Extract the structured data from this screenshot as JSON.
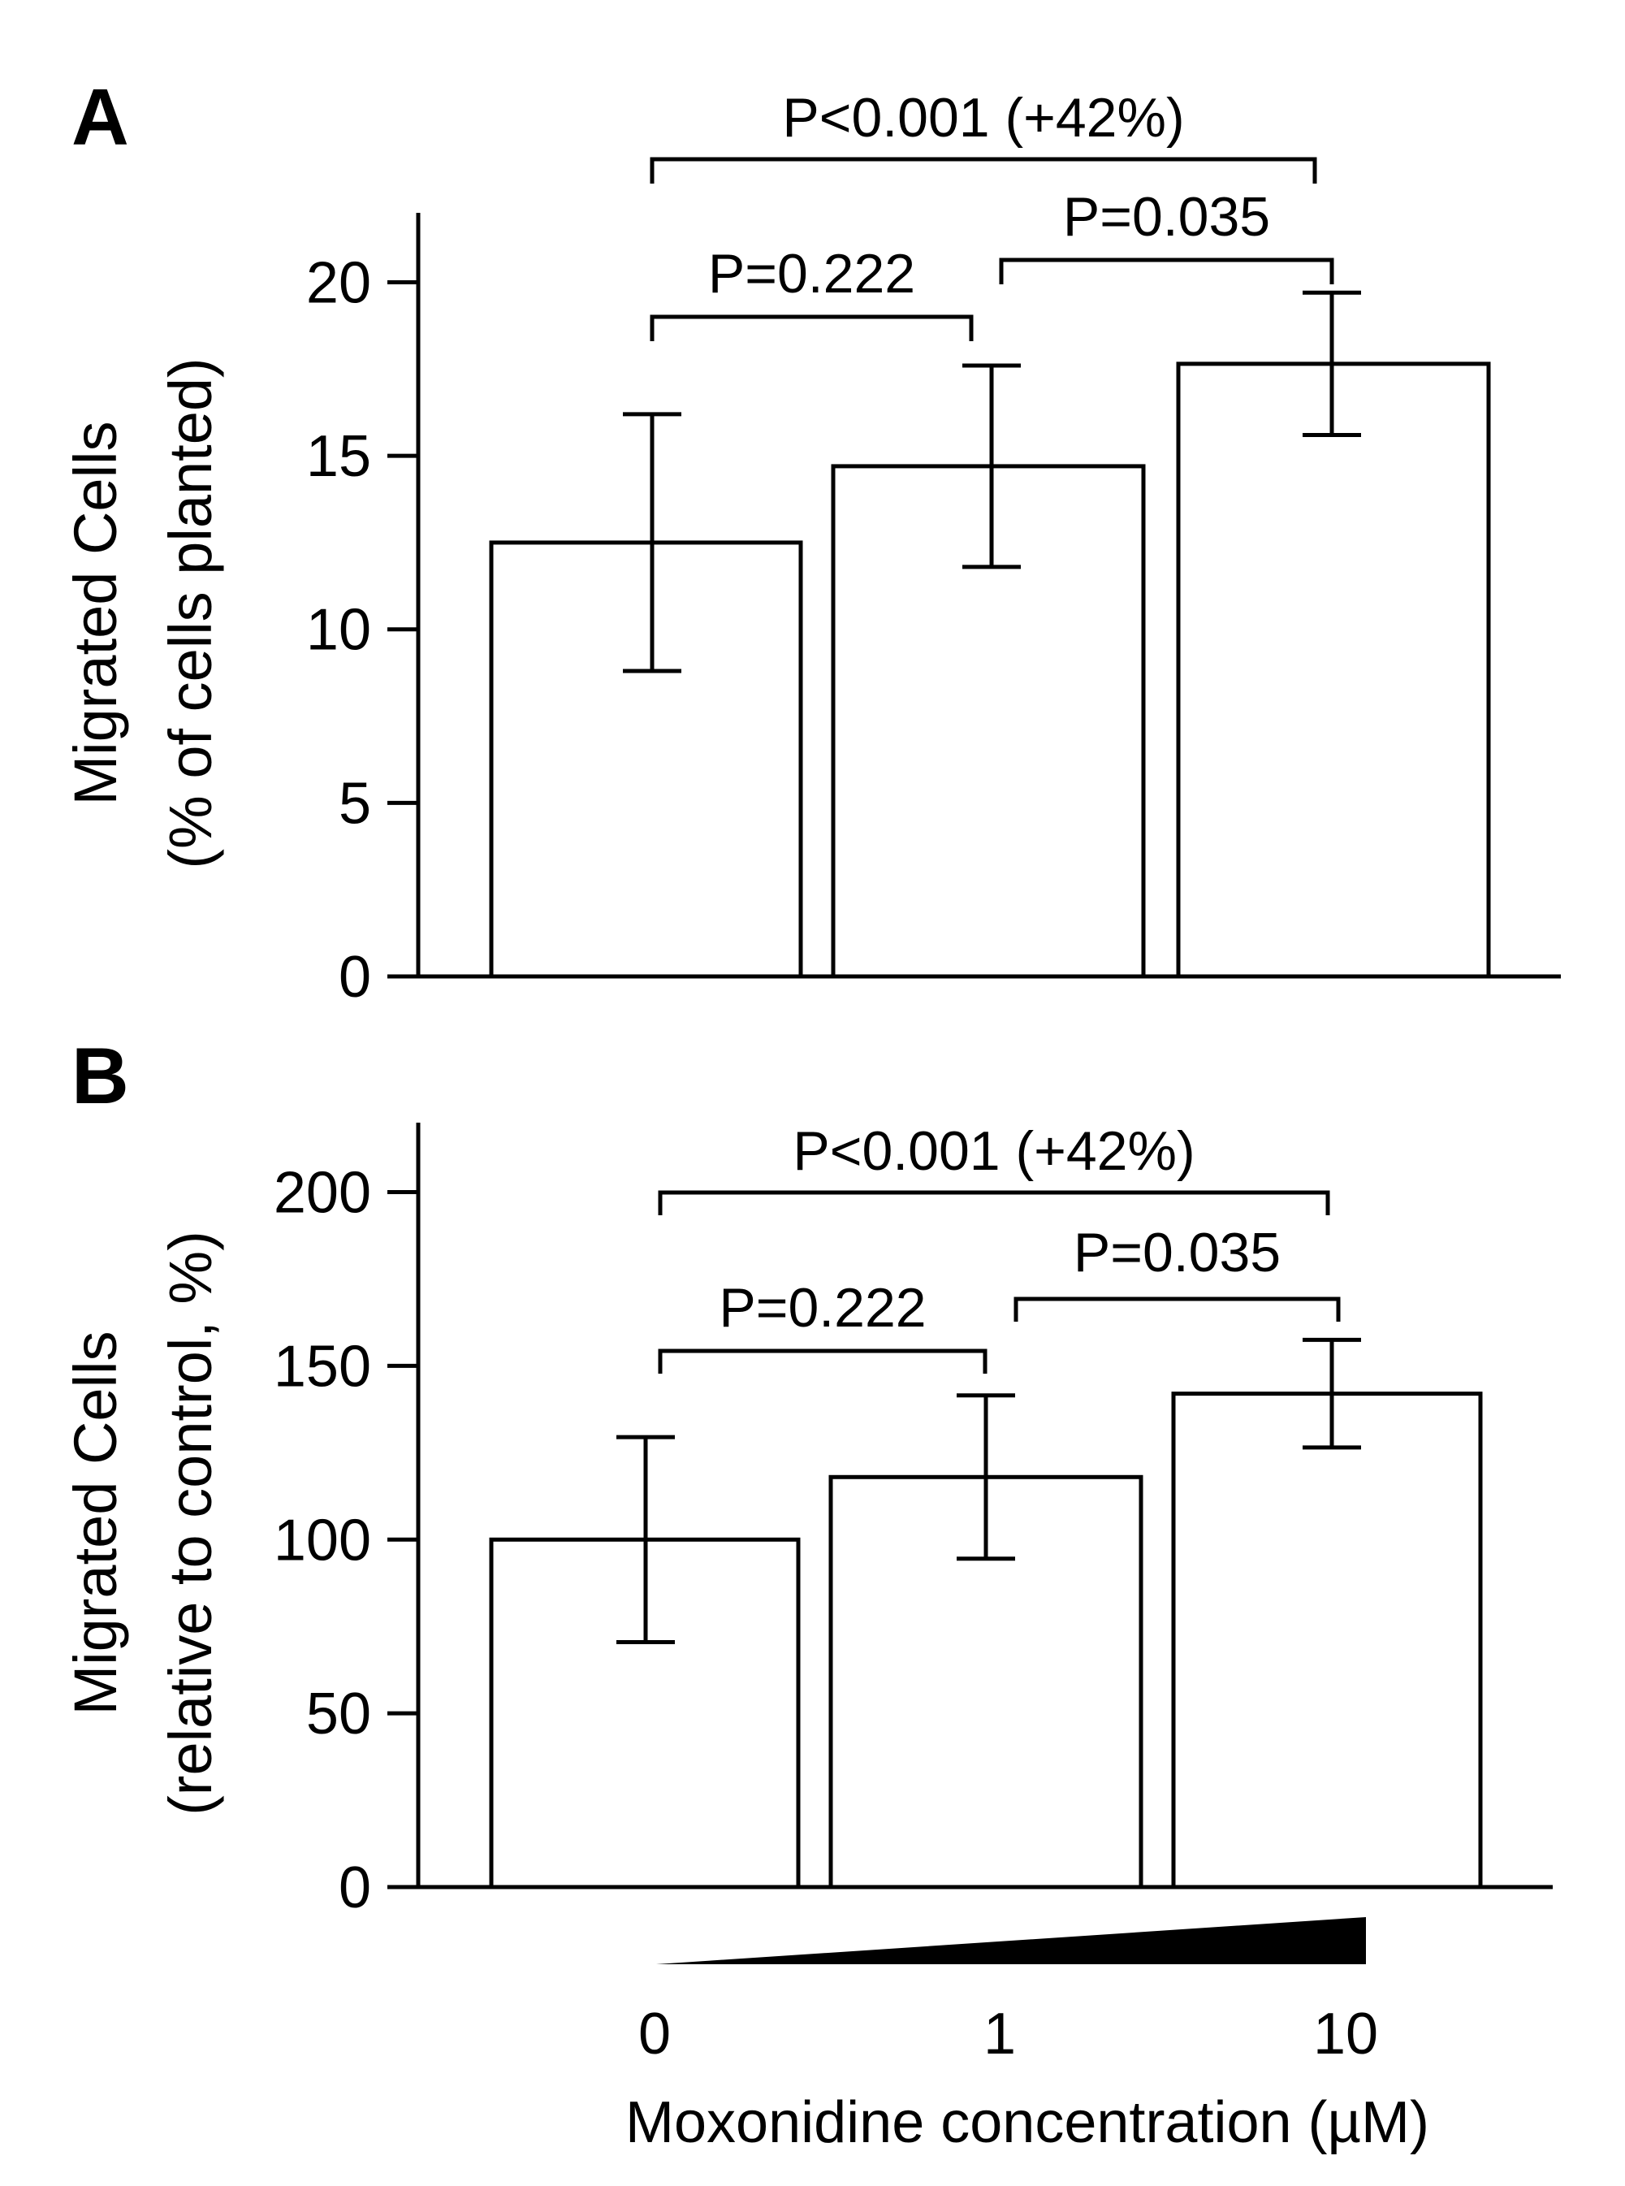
{
  "chart_data": [
    {
      "panel": "A",
      "type": "bar",
      "categories": [
        "0",
        "1",
        "10"
      ],
      "values": [
        12.5,
        14.7,
        17.65
      ],
      "error_bars": [
        3.7,
        2.9,
        2.05
      ],
      "ylabel": [
        "Migrated Cells",
        "(% of cells planted)"
      ],
      "yticks": [
        0,
        5,
        10,
        15,
        20
      ],
      "ylim": [
        0,
        22
      ],
      "annotations": [
        {
          "label": "P=0.222",
          "from": 0,
          "to": 1
        },
        {
          "label": "P=0.035",
          "from": 1,
          "to": 2
        },
        {
          "label": "P<0.001 (+42%)",
          "from": 0,
          "to": 2
        }
      ]
    },
    {
      "panel": "B",
      "type": "bar",
      "categories": [
        "0",
        "1",
        "10"
      ],
      "values": [
        100,
        118,
        142
      ],
      "error_bars": [
        29.5,
        23.5,
        15.5
      ],
      "ylabel": [
        "Migrated Cells",
        "(relative to control, %)"
      ],
      "yticks": [
        0,
        50,
        100,
        150,
        200
      ],
      "ylim": [
        0,
        220
      ],
      "annotations": [
        {
          "label": "P=0.222",
          "from": 0,
          "to": 1
        },
        {
          "label": "P=0.035",
          "from": 1,
          "to": 2
        },
        {
          "label": "P<0.001 (+42%)",
          "from": 0,
          "to": 2
        }
      ]
    }
  ],
  "x_axis": {
    "tick_labels": [
      "0",
      "1",
      "10"
    ],
    "label": "Moxonidine concentration (µM)"
  },
  "colors": {
    "bar_fill": "#ffffff",
    "stroke": "#000000",
    "gradient_wedge": "#000000"
  }
}
